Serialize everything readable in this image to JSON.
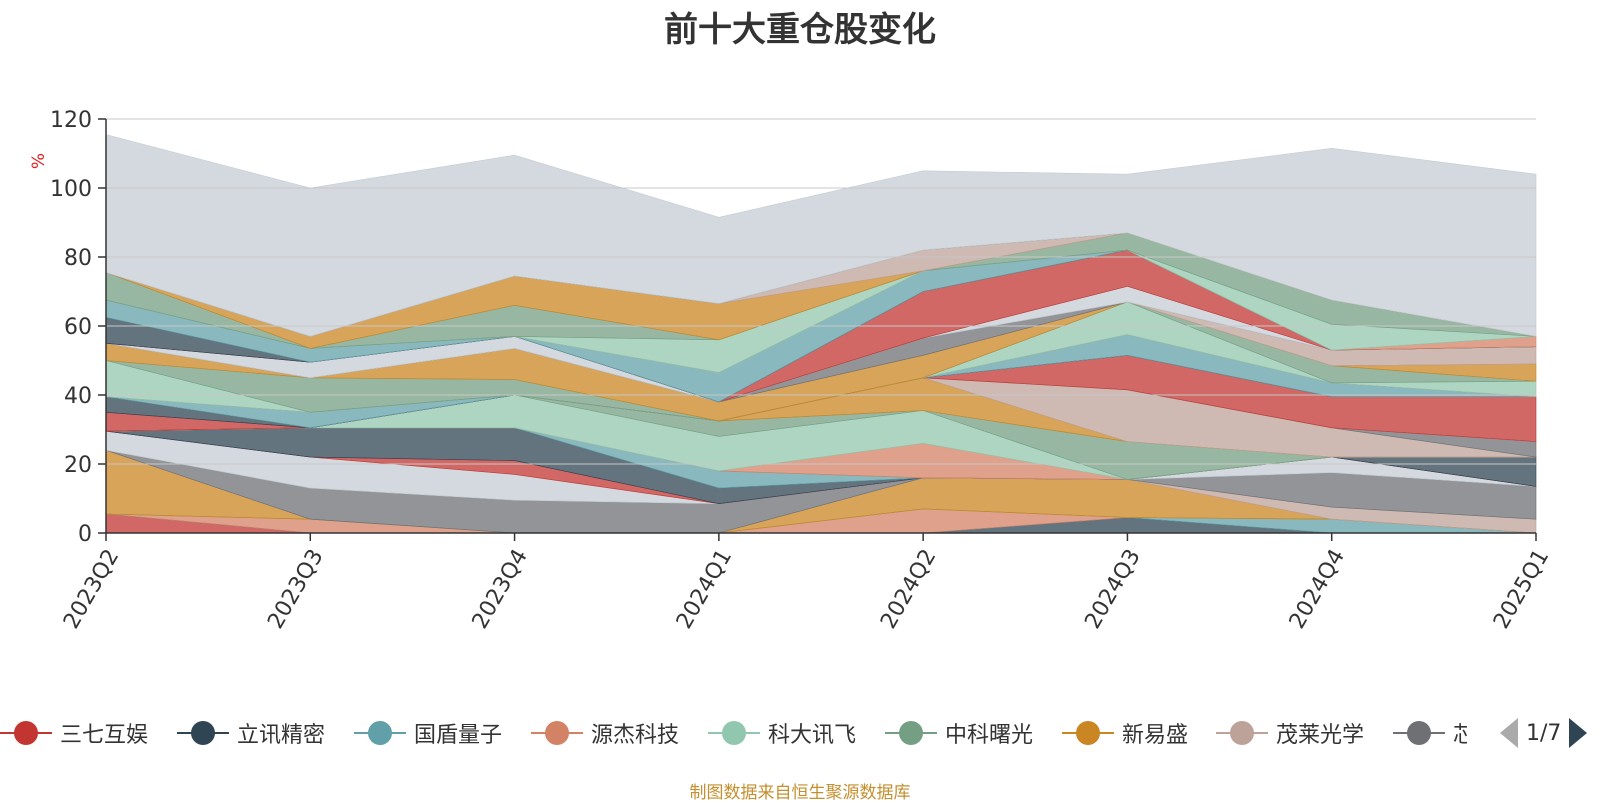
{
  "colors": [
    "#c23531",
    "#2f4554",
    "#61a0a8",
    "#d48265",
    "#91c7ae",
    "#749f83",
    "#ca8622",
    "#bda29a",
    "#6e7074",
    "#c4ccd3"
  ],
  "legend": {
    "items": [
      "三七互娱",
      "立讯精密",
      "国盾量子",
      "源杰科技",
      "科大讯飞",
      "中科曙光",
      "新易盛",
      "茂莱光学",
      "芯"
    ],
    "page": "1/7"
  },
  "source": "制图数据来自恒生聚源数据库",
  "chart_data": {
    "type": "area",
    "stacked": true,
    "title": "前十大重仓股变化",
    "ylabel": "%",
    "categories": [
      "2023Q2",
      "2023Q3",
      "2023Q4",
      "2024Q1",
      "2024Q2",
      "2024Q3",
      "2024Q4",
      "2025Q1"
    ],
    "ylim": [
      0,
      120
    ],
    "yticks": [
      0,
      20,
      40,
      60,
      80,
      100,
      120
    ],
    "grid": true,
    "legend_position": "bottom",
    "series": [
      {
        "values": [
          5.5,
          0,
          0,
          0,
          0,
          0,
          0,
          0
        ]
      },
      {
        "values": [
          0,
          0,
          0,
          0,
          0,
          4.5,
          0,
          0
        ]
      },
      {
        "values": [
          0,
          0,
          0,
          0,
          0,
          0,
          4.0,
          0
        ]
      },
      {
        "values": [
          0,
          4.0,
          0,
          0,
          7.0,
          0,
          0,
          0
        ]
      },
      {
        "values": [
          0,
          0,
          0,
          0,
          0,
          0,
          0,
          0
        ]
      },
      {
        "values": [
          0,
          0,
          0,
          0,
          0,
          0,
          0,
          0
        ]
      },
      {
        "values": [
          18.5,
          0,
          0,
          0,
          9.0,
          11.0,
          0,
          0
        ]
      },
      {
        "values": [
          0,
          0,
          0,
          0,
          0,
          0,
          3.5,
          4.0
        ]
      },
      {
        "values": [
          0,
          9.0,
          9.5,
          8.5,
          0,
          0,
          10.0,
          9.5
        ]
      },
      {
        "values": [
          5.5,
          9.0,
          7.5,
          0,
          0,
          0,
          4.5,
          0
        ]
      },
      {
        "values": [
          0,
          0,
          4.0,
          0,
          0,
          0,
          0,
          0
        ]
      },
      {
        "values": [
          0,
          8.5,
          9.5,
          4.5,
          0,
          0,
          0,
          8.5
        ]
      },
      {
        "values": [
          0,
          0,
          0,
          5.0,
          0,
          0,
          0,
          0
        ]
      },
      {
        "values": [
          0,
          0,
          0,
          0,
          10.0,
          0,
          0,
          0
        ]
      },
      {
        "values": [
          0,
          0,
          9.5,
          10.0,
          9.5,
          0,
          0,
          0
        ]
      },
      {
        "values": [
          0,
          0,
          0,
          4.5,
          0,
          11.0,
          0,
          0
        ]
      },
      {
        "values": [
          0,
          0,
          0,
          0,
          9.5,
          0,
          0,
          0
        ]
      },
      {
        "values": [
          0,
          0,
          0,
          0,
          0,
          15.0,
          8.5,
          0
        ]
      },
      {
        "values": [
          0,
          0,
          0,
          0,
          0,
          0,
          0,
          4.5
        ]
      },
      {
        "values": [
          0,
          0,
          0,
          0,
          0,
          0,
          0,
          0
        ]
      },
      {
        "values": [
          5.5,
          0,
          0,
          0,
          0,
          10.0,
          9.0,
          13.0
        ]
      },
      {
        "values": [
          4.5,
          0,
          0,
          0,
          0,
          0,
          0,
          0
        ]
      },
      {
        "values": [
          0,
          4.5,
          0,
          0,
          0,
          6.0,
          4.0,
          0
        ]
      },
      {
        "values": [
          0,
          0,
          0,
          0,
          0,
          0,
          0,
          0
        ]
      },
      {
        "values": [
          10.5,
          0,
          0,
          0,
          0,
          9.5,
          0,
          4.5
        ]
      },
      {
        "values": [
          0,
          10.0,
          4.5,
          0,
          0,
          0,
          5.0,
          0
        ]
      },
      {
        "values": [
          5.0,
          0,
          9.0,
          5.5,
          6.5,
          0,
          0,
          5.0
        ]
      },
      {
        "values": [
          0,
          0,
          0,
          0,
          0,
          0,
          4.5,
          5.0
        ]
      },
      {
        "values": [
          0,
          0,
          0,
          0,
          5.0,
          0,
          0,
          0
        ]
      },
      {
        "values": [
          0,
          4.5,
          3.5,
          0,
          0,
          4.5,
          0,
          0
        ]
      },
      {
        "values": [
          0,
          0,
          0,
          0,
          13.5,
          10.5,
          0,
          0
        ]
      },
      {
        "values": [
          7.5,
          0,
          0,
          0,
          0,
          0,
          0,
          0
        ]
      },
      {
        "values": [
          5.0,
          4.0,
          0,
          8.5,
          6.0,
          0,
          0,
          0
        ]
      },
      {
        "values": [
          0,
          0,
          0,
          0,
          0,
          0,
          0,
          3.0
        ]
      },
      {
        "values": [
          0,
          0,
          0,
          9.5,
          0,
          0,
          7.5,
          0
        ]
      },
      {
        "values": [
          8.0,
          0,
          9.0,
          0,
          0,
          5.0,
          7.0,
          0
        ]
      },
      {
        "values": [
          0,
          3.5,
          8.5,
          10.5,
          0,
          0,
          0,
          0
        ]
      },
      {
        "values": [
          0,
          0,
          0,
          0,
          6.0,
          0,
          0,
          0
        ]
      },
      {
        "values": [
          0,
          0,
          0,
          0,
          0,
          0,
          0,
          0
        ]
      },
      {
        "values": [
          40.0,
          43.0,
          35.0,
          25.0,
          23.0,
          17.0,
          44.0,
          47.0
        ]
      }
    ]
  }
}
